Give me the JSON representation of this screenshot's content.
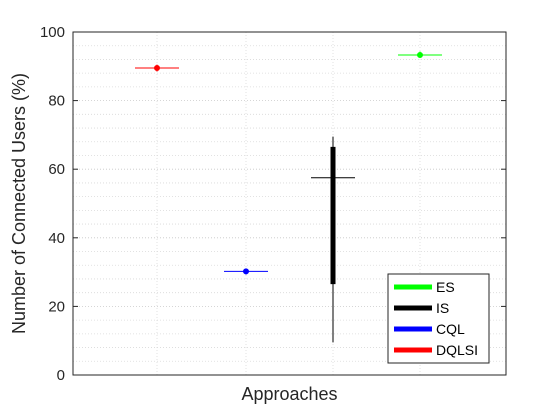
{
  "chart_data": {
    "type": "boxplot",
    "title": "",
    "xlabel": "Approaches",
    "ylabel": "Number of Connected Users (%)",
    "ylim": [
      0,
      100
    ],
    "yticks": [
      0,
      20,
      40,
      60,
      80,
      100
    ],
    "grid": true,
    "minor_grid": true,
    "legend_position": "bottom-right",
    "series": [
      {
        "name": "DQLSI",
        "color": "#ff0000",
        "min": 88.5,
        "q1": 89.2,
        "median": 89.5,
        "q3": 89.8,
        "max": 90.5,
        "mean": 89.5
      },
      {
        "name": "CQL",
        "color": "#0000ff",
        "min": 29.3,
        "q1": 29.9,
        "median": 30.2,
        "q3": 30.5,
        "max": 31.0,
        "mean": 30.2
      },
      {
        "name": "IS",
        "color": "#000000",
        "min": 9.5,
        "q1": 26.5,
        "median": 57.5,
        "q3": 66.5,
        "max": 69.5
      },
      {
        "name": "ES",
        "color": "#00ff00",
        "min": 92.5,
        "q1": 93.0,
        "median": 93.3,
        "q3": 93.7,
        "max": 94.3,
        "mean": 93.3
      }
    ],
    "legend_order": [
      "ES",
      "IS",
      "CQL",
      "DQLSI"
    ]
  }
}
